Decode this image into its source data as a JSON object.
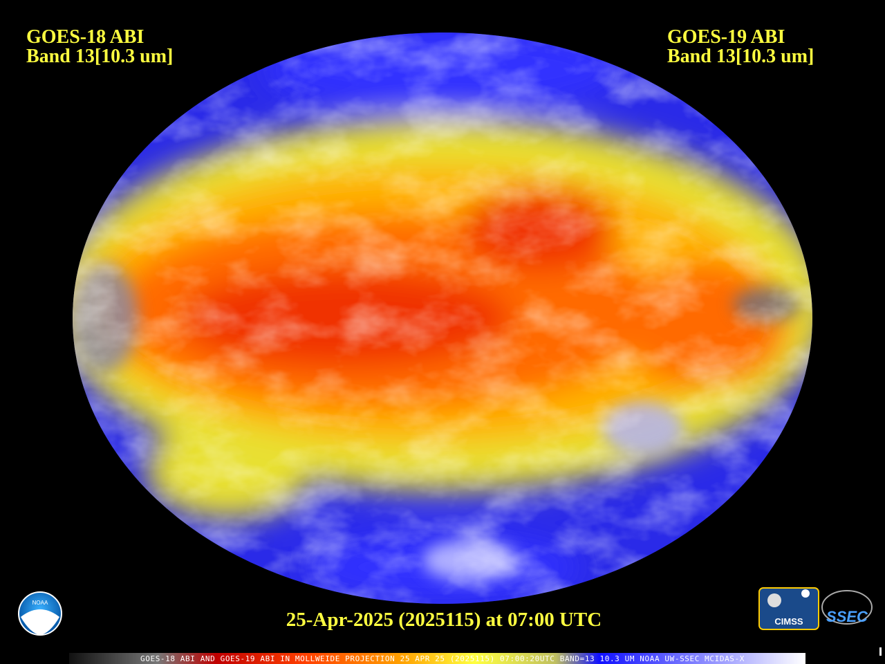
{
  "header": {
    "left": {
      "satellite": "GOES-18 ABI",
      "band": "Band 13[10.3 um]"
    },
    "right": {
      "satellite": "GOES-19 ABI",
      "band": "Band 13[10.3 um]"
    }
  },
  "footer": {
    "timestamp": "25-Apr-2025 (2025115) at 07:00 UTC",
    "caption": "GOES-18 ABI AND GOES-19 ABI IN MOLLWEIDE PROJECTION 25 APR 25 (2025115) 07:00:20UTC BAND=13 10.3 UM NOAA UW-SSEC MCIDAS-X"
  },
  "logos": {
    "noaa": "NOAA",
    "cimss": "CIMSS",
    "ssec": "SSEC"
  }
}
